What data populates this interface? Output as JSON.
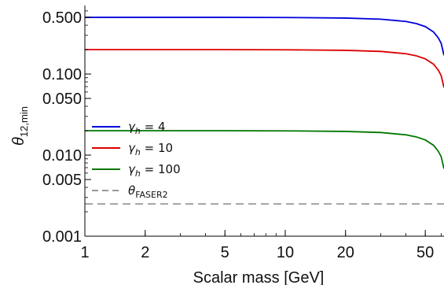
{
  "chart_data": {
    "type": "line",
    "title": "",
    "xlabel": "Scalar mass [GeV]",
    "ylabel_symbol": "θ",
    "ylabel_subscript": "12,min",
    "xscale": "log",
    "yscale": "log",
    "xlim": [
      1,
      62
    ],
    "ylim": [
      0.001,
      0.7
    ],
    "x_ticks": [
      1,
      2,
      5,
      10,
      20,
      50
    ],
    "x_tick_labels": [
      "1",
      "2",
      "5",
      "10",
      "20",
      "50"
    ],
    "y_ticks": [
      0.001,
      0.005,
      0.01,
      0.05,
      0.1,
      0.5
    ],
    "y_tick_labels": [
      "0.001",
      "0.005",
      "0.010",
      "0.050",
      "0.100",
      "0.500"
    ],
    "grid": false,
    "legend_position": "left-middle",
    "series": [
      {
        "legend_symbol": "γ",
        "legend_subscript": "h",
        "legend_value": " = 4",
        "color": "#0000dd",
        "style": "solid",
        "x": [
          1,
          2,
          5,
          10,
          20,
          30,
          40,
          45,
          50,
          55,
          58,
          60,
          62
        ],
        "y": [
          0.5,
          0.5,
          0.5,
          0.498,
          0.49,
          0.475,
          0.445,
          0.42,
          0.385,
          0.33,
          0.28,
          0.24,
          0.17
        ]
      },
      {
        "legend_symbol": "γ",
        "legend_subscript": "h",
        "legend_value": " = 10",
        "color": "#dd0000",
        "style": "solid",
        "x": [
          1,
          2,
          5,
          10,
          20,
          30,
          40,
          45,
          50,
          55,
          58,
          60,
          62
        ],
        "y": [
          0.2,
          0.2,
          0.2,
          0.199,
          0.196,
          0.19,
          0.178,
          0.168,
          0.154,
          0.132,
          0.112,
          0.096,
          0.068
        ]
      },
      {
        "legend_symbol": "γ",
        "legend_subscript": "h",
        "legend_value": " = 100",
        "color": "#007700",
        "style": "solid",
        "x": [
          1,
          2,
          5,
          10,
          20,
          30,
          40,
          45,
          50,
          55,
          58,
          60,
          62
        ],
        "y": [
          0.02,
          0.02,
          0.02,
          0.0199,
          0.0196,
          0.019,
          0.0178,
          0.0168,
          0.0154,
          0.0132,
          0.0112,
          0.0096,
          0.0068
        ]
      },
      {
        "legend_symbol": "θ",
        "legend_subscript": "FASER2",
        "legend_value": "",
        "color": "#999999",
        "style": "dashed",
        "x": [
          1,
          62
        ],
        "y": [
          0.0025,
          0.0025
        ]
      }
    ]
  }
}
